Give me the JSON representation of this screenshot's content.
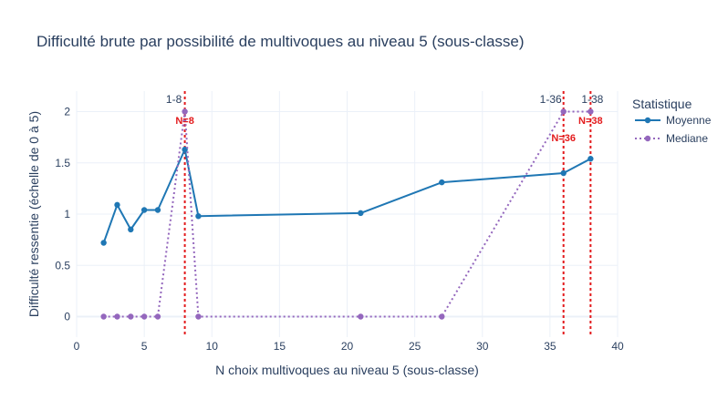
{
  "chart_data": {
    "type": "line",
    "title": "Difficulté brute par possibilité de multivoques au niveau 5 (sous-classe)",
    "xlabel": "N choix multivoques au niveau 5 (sous-classe)",
    "ylabel": "Difficulté ressentie (échelle de 0 à 5)",
    "xlim": [
      0,
      40
    ],
    "ylim": [
      -0.2,
      2.2
    ],
    "x_ticks": [
      "0",
      "5",
      "10",
      "15",
      "20",
      "25",
      "30",
      "35",
      "40"
    ],
    "y_ticks": [
      "0",
      "0.5",
      "1",
      "1.5",
      "2"
    ],
    "grid": true,
    "legend": {
      "title": "Statistique",
      "position": "right"
    },
    "series": [
      {
        "name": "Moyenne",
        "color": "#1f77b4",
        "style": "solid",
        "x": [
          2,
          3,
          4,
          5,
          6,
          8,
          9,
          21,
          27,
          36,
          38
        ],
        "values": [
          0.72,
          1.09,
          0.85,
          1.04,
          1.04,
          1.63,
          0.98,
          1.01,
          1.31,
          1.4,
          1.54
        ]
      },
      {
        "name": "Mediane",
        "color": "#9467bd",
        "style": "dotted",
        "x": [
          2,
          3,
          4,
          5,
          6,
          8,
          9,
          21,
          27,
          36,
          38
        ],
        "values": [
          0,
          0,
          0,
          0,
          0,
          2,
          0,
          0,
          0,
          2,
          2
        ]
      }
    ],
    "annotations": [
      {
        "x": 8,
        "top_label": "1-8",
        "n_label": "N=8",
        "color": "#e31a1c"
      },
      {
        "x": 36,
        "top_label": "1-36",
        "n_label": "N=36",
        "color": "#e31a1c"
      },
      {
        "x": 38,
        "top_label": "1-38",
        "n_label": "N=38",
        "color": "#e31a1c"
      }
    ]
  }
}
